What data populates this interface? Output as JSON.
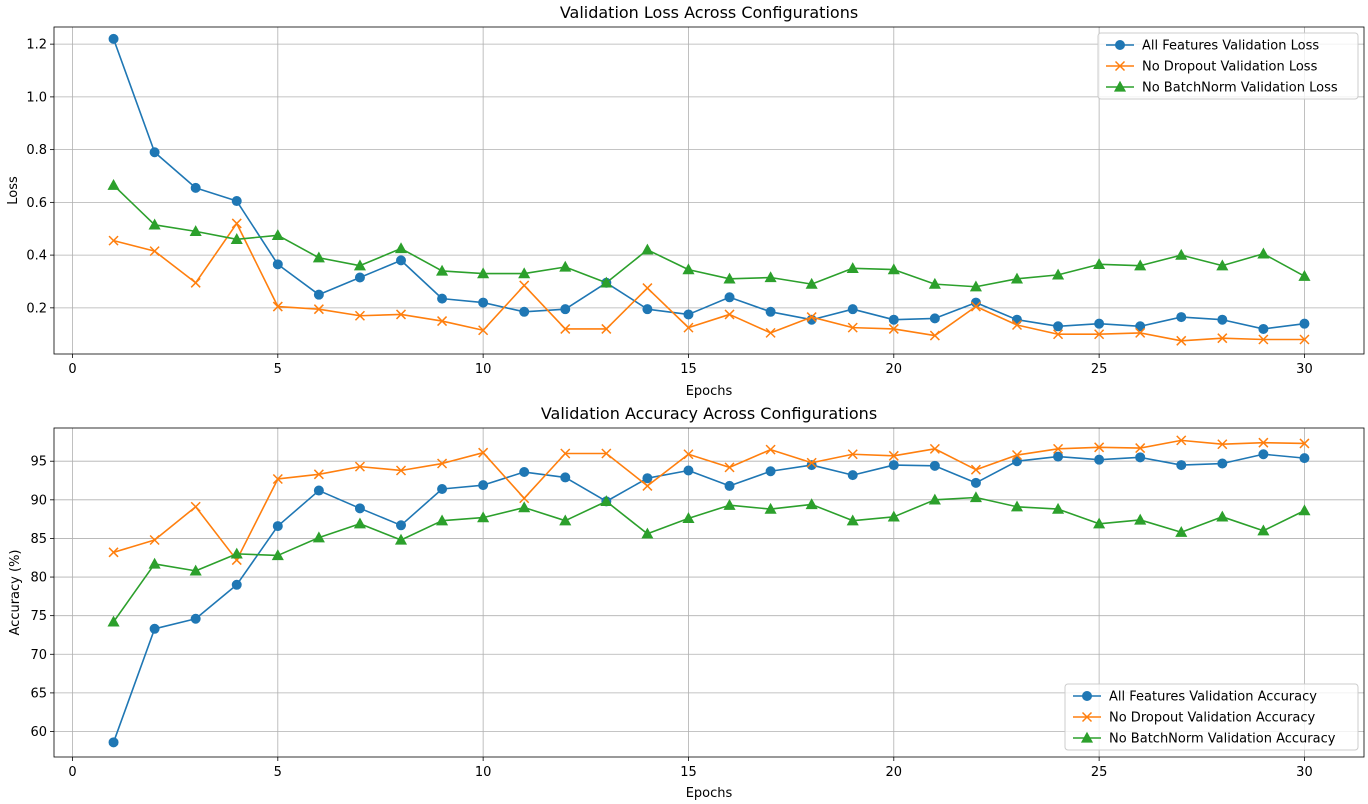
{
  "chart_data": [
    {
      "type": "line",
      "title": "Validation Loss Across Configurations",
      "xlabel": "Epochs",
      "ylabel": "Loss",
      "xlim": [
        -0.45,
        31.45
      ],
      "ylim": [
        0.025,
        1.265
      ],
      "xticks": [
        0,
        5,
        10,
        15,
        20,
        25,
        30
      ],
      "yticks": [
        0.2,
        0.4,
        0.6,
        0.8,
        1.0,
        1.2
      ],
      "ytick_labels": [
        "0.2",
        "0.4",
        "0.6",
        "0.8",
        "1.0",
        "1.2"
      ],
      "grid": true,
      "legend_position": "top-right",
      "x": [
        1,
        2,
        3,
        4,
        5,
        6,
        7,
        8,
        9,
        10,
        11,
        12,
        13,
        14,
        15,
        16,
        17,
        18,
        19,
        20,
        21,
        22,
        23,
        24,
        25,
        26,
        27,
        28,
        29,
        30
      ],
      "series": [
        {
          "name": "All Features Validation Loss",
          "color": "#1f77b4",
          "marker": "circle",
          "values": [
            1.22,
            0.79,
            0.655,
            0.605,
            0.365,
            0.25,
            0.315,
            0.38,
            0.235,
            0.22,
            0.185,
            0.195,
            0.295,
            0.195,
            0.175,
            0.24,
            0.185,
            0.155,
            0.195,
            0.155,
            0.16,
            0.22,
            0.155,
            0.13,
            0.14,
            0.13,
            0.165,
            0.155,
            0.12,
            0.14
          ]
        },
        {
          "name": "No Dropout Validation Loss",
          "color": "#ff7f0e",
          "marker": "x",
          "values": [
            0.455,
            0.415,
            0.295,
            0.52,
            0.205,
            0.195,
            0.17,
            0.175,
            0.15,
            0.115,
            0.285,
            0.12,
            0.12,
            0.275,
            0.125,
            0.175,
            0.105,
            0.165,
            0.125,
            0.12,
            0.095,
            0.205,
            0.135,
            0.1,
            0.1,
            0.105,
            0.075,
            0.085,
            0.08,
            0.08
          ]
        },
        {
          "name": "No BatchNorm Validation Loss",
          "color": "#2ca02c",
          "marker": "triangle",
          "values": [
            0.665,
            0.515,
            0.49,
            0.46,
            0.475,
            0.39,
            0.36,
            0.425,
            0.34,
            0.33,
            0.33,
            0.355,
            0.295,
            0.42,
            0.345,
            0.31,
            0.315,
            0.29,
            0.35,
            0.345,
            0.29,
            0.28,
            0.31,
            0.325,
            0.365,
            0.36,
            0.4,
            0.36,
            0.405,
            0.32
          ]
        }
      ]
    },
    {
      "type": "line",
      "title": "Validation Accuracy Across Configurations",
      "xlabel": "Epochs",
      "ylabel": "Accuracy (%)",
      "xlim": [
        -0.45,
        31.45
      ],
      "ylim": [
        56.7,
        99.3
      ],
      "xticks": [
        0,
        5,
        10,
        15,
        20,
        25,
        30
      ],
      "yticks": [
        60,
        65,
        70,
        75,
        80,
        85,
        90,
        95
      ],
      "ytick_labels": [
        "60",
        "65",
        "70",
        "75",
        "80",
        "85",
        "90",
        "95"
      ],
      "grid": true,
      "legend_position": "bottom-right",
      "x": [
        1,
        2,
        3,
        4,
        5,
        6,
        7,
        8,
        9,
        10,
        11,
        12,
        13,
        14,
        15,
        16,
        17,
        18,
        19,
        20,
        21,
        22,
        23,
        24,
        25,
        26,
        27,
        28,
        29,
        30
      ],
      "series": [
        {
          "name": "All Features Validation Accuracy",
          "color": "#1f77b4",
          "marker": "circle",
          "values": [
            58.6,
            73.3,
            74.6,
            79.0,
            86.6,
            91.2,
            88.9,
            86.7,
            91.4,
            91.9,
            93.6,
            92.9,
            89.8,
            92.8,
            93.8,
            91.8,
            93.7,
            94.5,
            93.2,
            94.5,
            94.4,
            92.2,
            95.0,
            95.6,
            95.2,
            95.5,
            94.5,
            94.7,
            95.9,
            95.4
          ]
        },
        {
          "name": "No Dropout Validation Accuracy",
          "color": "#ff7f0e",
          "marker": "x",
          "values": [
            83.2,
            84.8,
            89.1,
            82.2,
            92.7,
            93.3,
            94.3,
            93.8,
            94.7,
            96.1,
            90.2,
            96.0,
            96.0,
            91.8,
            95.9,
            94.2,
            96.5,
            94.8,
            95.9,
            95.7,
            96.6,
            93.9,
            95.8,
            96.6,
            96.8,
            96.7,
            97.7,
            97.2,
            97.4,
            97.3
          ]
        },
        {
          "name": "No BatchNorm Validation Accuracy",
          "color": "#2ca02c",
          "marker": "triangle",
          "values": [
            74.2,
            81.7,
            80.8,
            83.0,
            82.8,
            85.1,
            86.9,
            84.8,
            87.3,
            87.7,
            89.0,
            87.3,
            89.8,
            85.6,
            87.6,
            89.3,
            88.8,
            89.4,
            87.3,
            87.8,
            90.0,
            90.3,
            89.1,
            88.8,
            86.9,
            87.4,
            85.8,
            87.8,
            86.0,
            88.6
          ]
        }
      ]
    }
  ]
}
